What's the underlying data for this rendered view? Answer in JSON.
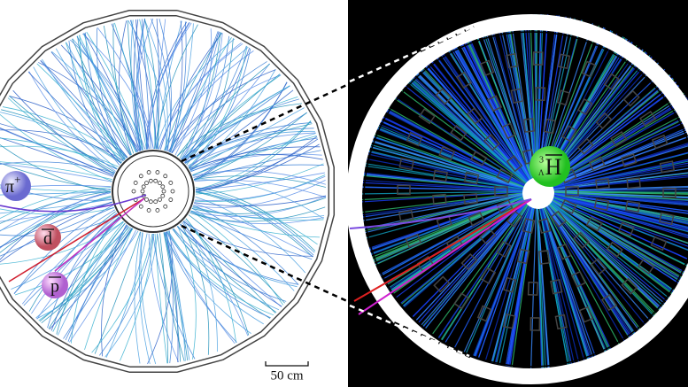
{
  "left_panel": {
    "particles": [
      {
        "symbol": "π",
        "charge": "+"
      },
      {
        "symbol": "d"
      },
      {
        "symbol": "p"
      }
    ],
    "scale_bar": "50 cm"
  },
  "right_panel": {
    "hypernucleus": {
      "mass_number": "3",
      "hyperon": "Λ",
      "symbol": "H"
    }
  }
}
